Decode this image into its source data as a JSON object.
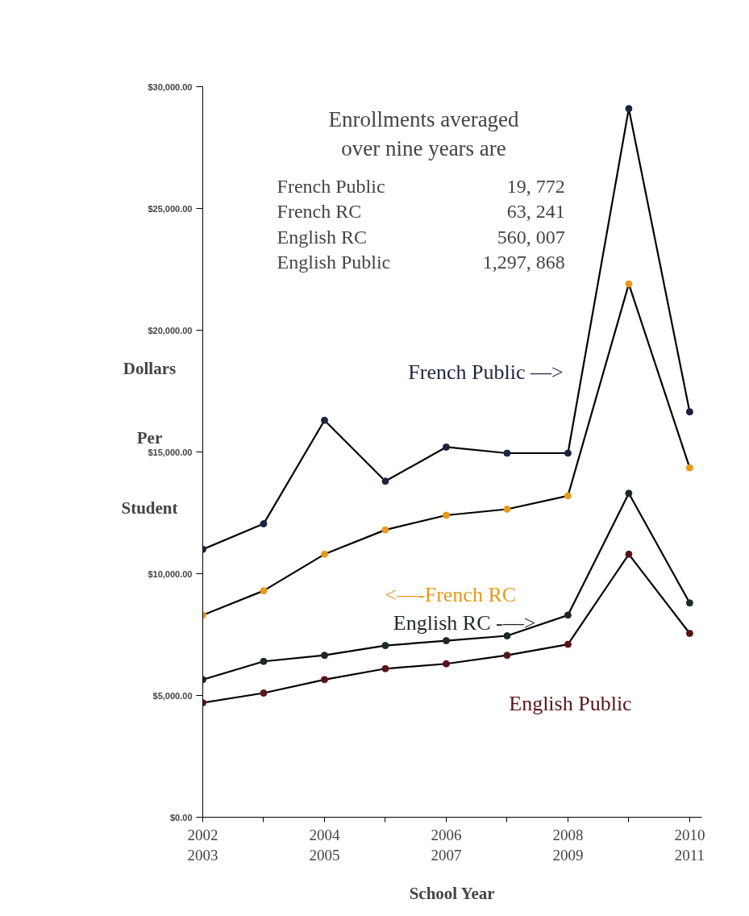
{
  "chart_data": {
    "type": "line",
    "xlabel": "School Year",
    "ylabel": "Dollars Per Student",
    "categories": [
      "2002\n2003",
      null,
      "2004\n2005",
      null,
      "2006\n2007",
      null,
      "2008\n2009",
      null,
      "2010\n2011"
    ],
    "series": [
      {
        "name": "French Public —>",
        "color": "#1c2440",
        "values": [
          11000,
          12050,
          16300,
          13800,
          15200,
          14950,
          14950,
          29100,
          16650
        ]
      },
      {
        "name": "<—-French RC",
        "color": "#e89a1c",
        "values": [
          8300,
          9300,
          10800,
          11800,
          12400,
          12650,
          13200,
          21900,
          14350
        ]
      },
      {
        "name": "English RC -—>",
        "color": "#1e2a24",
        "values": [
          5650,
          6400,
          6650,
          7050,
          7250,
          7450,
          8300,
          13300,
          8800
        ]
      },
      {
        "name": "English Public",
        "color": "#5a1418",
        "values": [
          4700,
          5100,
          5650,
          6100,
          6300,
          6650,
          7100,
          10800,
          7550
        ]
      }
    ],
    "ylim": [
      0,
      30000
    ],
    "yticks": [
      {
        "value": 0,
        "label": "$0.00"
      },
      {
        "value": 5000,
        "label": "$5,000.00"
      },
      {
        "value": 10000,
        "label": "$10,000.00"
      },
      {
        "value": 15000,
        "label": "$15,000.00"
      },
      {
        "value": 20000,
        "label": "$20,000.00"
      },
      {
        "value": 25000,
        "label": "$25,000.00"
      },
      {
        "value": 30000,
        "label": "$30,000.00"
      }
    ],
    "annotations": [
      "Enrollments averaged\nover nine years are",
      "French Public 19, 772",
      "French RC 63, 241",
      "English RC 560, 007",
      "English Public 1,297, 868"
    ],
    "grid": false,
    "legend": false,
    "marker": "circle",
    "line_style": "solid"
  }
}
